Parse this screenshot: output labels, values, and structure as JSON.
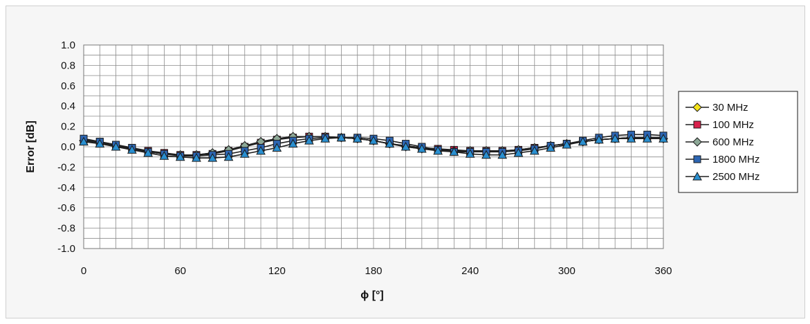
{
  "chart_data": {
    "type": "line",
    "title": "",
    "xlabel": "ϕ [°]",
    "ylabel": "Error [dB]",
    "xlim": [
      0,
      360
    ],
    "ylim": [
      -1.0,
      1.0
    ],
    "x_major_ticks": [
      0,
      60,
      120,
      180,
      240,
      300,
      360
    ],
    "x_major_tick_labels": [
      "0",
      "60",
      "120",
      "180",
      "240",
      "300",
      "360"
    ],
    "x_grid_step": 10,
    "y_ticks": [
      1.0,
      0.8,
      0.6,
      0.4,
      0.2,
      0.0,
      -0.2,
      -0.4,
      -0.6,
      -0.8,
      -1.0
    ],
    "y_tick_labels": [
      "1.0",
      "0.8",
      "0.6",
      "0.4",
      "0.2",
      "0.0",
      "-0.2",
      "-0.4",
      "-0.6",
      "-0.8",
      "-1.0"
    ],
    "y_grid_step": 0.1,
    "grid": true,
    "legend_position": "right",
    "x": [
      0,
      10,
      20,
      30,
      40,
      50,
      60,
      70,
      80,
      90,
      100,
      110,
      120,
      130,
      140,
      150,
      160,
      170,
      180,
      190,
      200,
      210,
      220,
      230,
      240,
      250,
      260,
      270,
      280,
      290,
      300,
      310,
      320,
      330,
      340,
      350,
      360
    ],
    "series": [
      {
        "name": "30 MHz",
        "marker": "diamond",
        "color": "#f5e31a",
        "values": [
          0.06,
          0.04,
          0.01,
          -0.02,
          -0.05,
          -0.07,
          -0.08,
          -0.08,
          -0.06,
          -0.03,
          0.01,
          0.05,
          0.08,
          0.1,
          0.1,
          0.1,
          0.09,
          0.08,
          0.06,
          0.03,
          0.01,
          -0.01,
          -0.03,
          -0.04,
          -0.04,
          -0.04,
          -0.04,
          -0.03,
          -0.01,
          0.01,
          0.03,
          0.05,
          0.07,
          0.08,
          0.09,
          0.09,
          0.08
        ]
      },
      {
        "name": "100 MHz",
        "marker": "square",
        "color": "#d8204c",
        "values": [
          0.07,
          0.05,
          0.02,
          -0.01,
          -0.04,
          -0.06,
          -0.08,
          -0.08,
          -0.07,
          -0.04,
          0.0,
          0.04,
          0.07,
          0.09,
          0.1,
          0.1,
          0.09,
          0.08,
          0.06,
          0.03,
          0.01,
          -0.01,
          -0.02,
          -0.03,
          -0.04,
          -0.04,
          -0.04,
          -0.03,
          -0.01,
          0.01,
          0.03,
          0.05,
          0.07,
          0.08,
          0.09,
          0.09,
          0.09
        ]
      },
      {
        "name": "600 MHz",
        "marker": "diamond",
        "color": "#8da897",
        "values": [
          0.06,
          0.04,
          0.01,
          -0.02,
          -0.05,
          -0.07,
          -0.08,
          -0.08,
          -0.06,
          -0.03,
          0.01,
          0.05,
          0.08,
          0.1,
          0.1,
          0.1,
          0.09,
          0.08,
          0.06,
          0.03,
          0.0,
          -0.02,
          -0.03,
          -0.04,
          -0.04,
          -0.04,
          -0.04,
          -0.03,
          -0.01,
          0.01,
          0.03,
          0.05,
          0.07,
          0.08,
          0.09,
          0.09,
          0.08
        ]
      },
      {
        "name": "1800 MHz",
        "marker": "square",
        "color": "#2d66b3",
        "values": [
          0.08,
          0.05,
          0.02,
          -0.01,
          -0.05,
          -0.07,
          -0.09,
          -0.09,
          -0.08,
          -0.07,
          -0.04,
          -0.01,
          0.03,
          0.06,
          0.08,
          0.09,
          0.09,
          0.09,
          0.08,
          0.06,
          0.03,
          0.0,
          -0.03,
          -0.05,
          -0.05,
          -0.05,
          -0.05,
          -0.04,
          -0.02,
          0.01,
          0.03,
          0.06,
          0.09,
          0.11,
          0.12,
          0.12,
          0.11
        ]
      },
      {
        "name": "2500 MHz",
        "marker": "triangle",
        "color": "#2a8fd0",
        "values": [
          0.05,
          0.03,
          0.0,
          -0.03,
          -0.06,
          -0.09,
          -0.1,
          -0.11,
          -0.11,
          -0.1,
          -0.07,
          -0.04,
          -0.01,
          0.03,
          0.06,
          0.08,
          0.09,
          0.08,
          0.06,
          0.03,
          0.0,
          -0.02,
          -0.04,
          -0.05,
          -0.07,
          -0.08,
          -0.08,
          -0.06,
          -0.04,
          -0.01,
          0.02,
          0.05,
          0.07,
          0.08,
          0.08,
          0.08,
          0.08
        ]
      }
    ]
  }
}
